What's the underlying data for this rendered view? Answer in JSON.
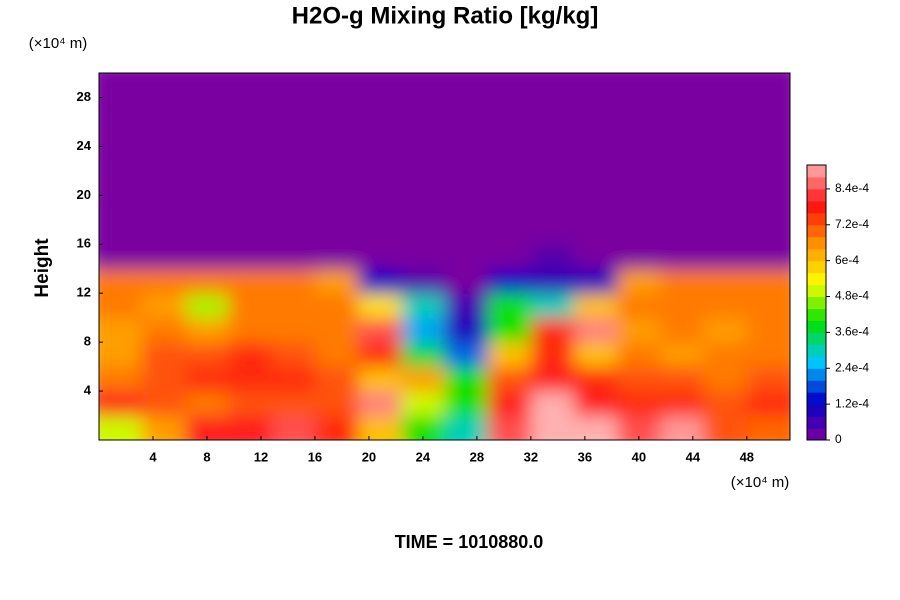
{
  "chart_data": {
    "type": "heatmap",
    "title": "H2O-g Mixing Ratio [kg/kg]",
    "ylabel": "Height",
    "xunit": "(×10⁴ m)",
    "yunit": "(×10⁴ m)",
    "annotation": "TIME = 1010880.0",
    "xlim": [
      0,
      51.2
    ],
    "ylim": [
      0,
      30
    ],
    "xticks": [
      4,
      8,
      12,
      16,
      20,
      24,
      28,
      32,
      36,
      40,
      44,
      48
    ],
    "yticks": [
      4,
      8,
      12,
      16,
      20,
      24,
      28
    ],
    "zlim": [
      0,
      0.00092
    ],
    "zticks": [
      0,
      {
        "value": 0.00012,
        "label": "1.2e-4"
      },
      {
        "value": 0.00024,
        "label": "2.4e-4"
      },
      {
        "value": 0.00036,
        "label": "3.6e-4"
      },
      {
        "value": 0.00048,
        "label": "4.8e-4"
      },
      {
        "value": 0.0006,
        "label": "6e-4"
      },
      {
        "value": 0.00072,
        "label": "7.2e-4"
      },
      {
        "value": 0.00084,
        "label": "8.4e-4"
      }
    ],
    "colors": [
      "#7a00a0",
      "#0000c8",
      "#00c8ff",
      "#00e000",
      "#ffff00",
      "#ff9000",
      "#ff1010",
      "#ffb0b0"
    ],
    "z": [
      [
        0.0005,
        0.00064,
        0.0008,
        0.0008,
        0.00084,
        0.00076,
        0.0006,
        0.0004,
        0.0003,
        0.00084,
        0.00092,
        0.00092,
        0.00084,
        0.0009,
        0.00072,
        0.0007
      ],
      [
        0.0008,
        0.00072,
        0.00068,
        0.00072,
        0.00072,
        0.00072,
        0.00088,
        0.0005,
        0.0004,
        0.0008,
        0.00092,
        0.0008,
        0.00076,
        0.00076,
        0.00072,
        0.00076
      ],
      [
        0.00068,
        0.00072,
        0.00076,
        0.00076,
        0.00076,
        0.00072,
        0.0006,
        0.00064,
        0.0004,
        0.00072,
        0.0008,
        0.00076,
        0.00072,
        0.00072,
        0.00068,
        0.00072
      ],
      [
        0.00064,
        0.00072,
        0.00072,
        0.00076,
        0.00072,
        0.00068,
        0.00076,
        0.00036,
        0.0002,
        0.0006,
        0.00076,
        0.0006,
        0.00068,
        0.00064,
        0.00068,
        0.00068
      ],
      [
        0.00064,
        0.00068,
        0.00064,
        0.00068,
        0.00068,
        0.00068,
        0.00084,
        0.00024,
        0.0001,
        0.0004,
        0.00076,
        0.00088,
        0.00064,
        0.00068,
        0.00064,
        0.00068
      ],
      [
        0.00068,
        0.00064,
        0.00048,
        0.00068,
        0.00068,
        0.00068,
        0.00056,
        0.0003,
        6e-05,
        0.0004,
        0.0003,
        0.0006,
        0.00068,
        0.00068,
        0.00068,
        0.00068
      ],
      [
        0.00068,
        0.00068,
        0.00068,
        0.00068,
        0.00068,
        0.00064,
        0.00012,
        4e-05,
        0,
        0.00012,
        8e-05,
        0.0001,
        0.00064,
        0.00068,
        0.00068,
        0.00068
      ],
      [
        0,
        0,
        0,
        0,
        0,
        0,
        0,
        0,
        0,
        0,
        4e-05,
        0,
        0,
        0,
        0,
        0
      ],
      [
        0,
        0,
        0,
        0,
        0,
        0,
        0,
        0,
        0,
        0,
        0,
        0,
        0,
        0,
        0,
        0
      ],
      [
        0,
        0,
        0,
        0,
        0,
        0,
        0,
        0,
        0,
        0,
        0,
        0,
        0,
        0,
        0,
        0
      ],
      [
        0,
        0,
        0,
        0,
        0,
        0,
        0,
        0,
        0,
        0,
        0,
        0,
        0,
        0,
        0,
        0
      ],
      [
        0,
        0,
        0,
        0,
        0,
        0,
        0,
        0,
        0,
        0,
        0,
        0,
        0,
        0,
        0,
        0
      ],
      [
        0,
        0,
        0,
        0,
        0,
        0,
        0,
        0,
        0,
        0,
        0,
        0,
        0,
        0,
        0,
        0
      ],
      [
        0,
        0,
        0,
        0,
        0,
        0,
        0,
        0,
        0,
        0,
        0,
        0,
        0,
        0,
        0,
        0
      ],
      [
        0,
        0,
        0,
        0,
        0,
        0,
        0,
        0,
        0,
        0,
        0,
        0,
        0,
        0,
        0,
        0
      ]
    ]
  }
}
